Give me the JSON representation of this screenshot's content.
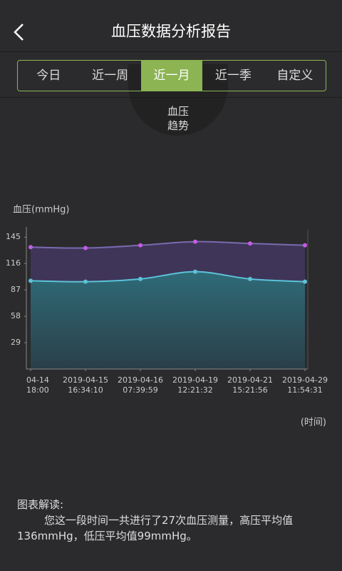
{
  "header": {
    "title": "血压数据分析报告"
  },
  "tabs": {
    "items": [
      "今日",
      "近一周",
      "近一月",
      "近一季",
      "自定义"
    ],
    "active": 2
  },
  "badge": {
    "line1": "血压",
    "line2": "趋势"
  },
  "chart_data": {
    "type": "area",
    "ylabel": "血压(mmHg)",
    "xlabel": "(时间)",
    "categories": [
      "2019-04-14",
      "2019-04-15",
      "2019-04-16",
      "2019-04-19",
      "2019-04-21",
      "2019-04-29"
    ],
    "times": [
      "18:00",
      "16:34:10",
      "07:39:59",
      "12:21:32",
      "15:21:56",
      "11:54:31"
    ],
    "series": [
      {
        "color": "#c45ce6",
        "fill": "#3f3558",
        "values": [
          134,
          133,
          136,
          140,
          138,
          136
        ]
      },
      {
        "color": "#5cc3d9",
        "fill": "#2f6b78",
        "values": [
          97,
          96,
          99,
          107,
          99,
          96
        ]
      }
    ],
    "ylim": [
      0,
      153
    ],
    "yticks": [
      29,
      58,
      87,
      116,
      145
    ]
  },
  "note": {
    "title": "图表解读:",
    "text": "您这一段时间一共进行了27次血压测量，高压平均值136mmHg，低压平均值99mmHg。"
  }
}
